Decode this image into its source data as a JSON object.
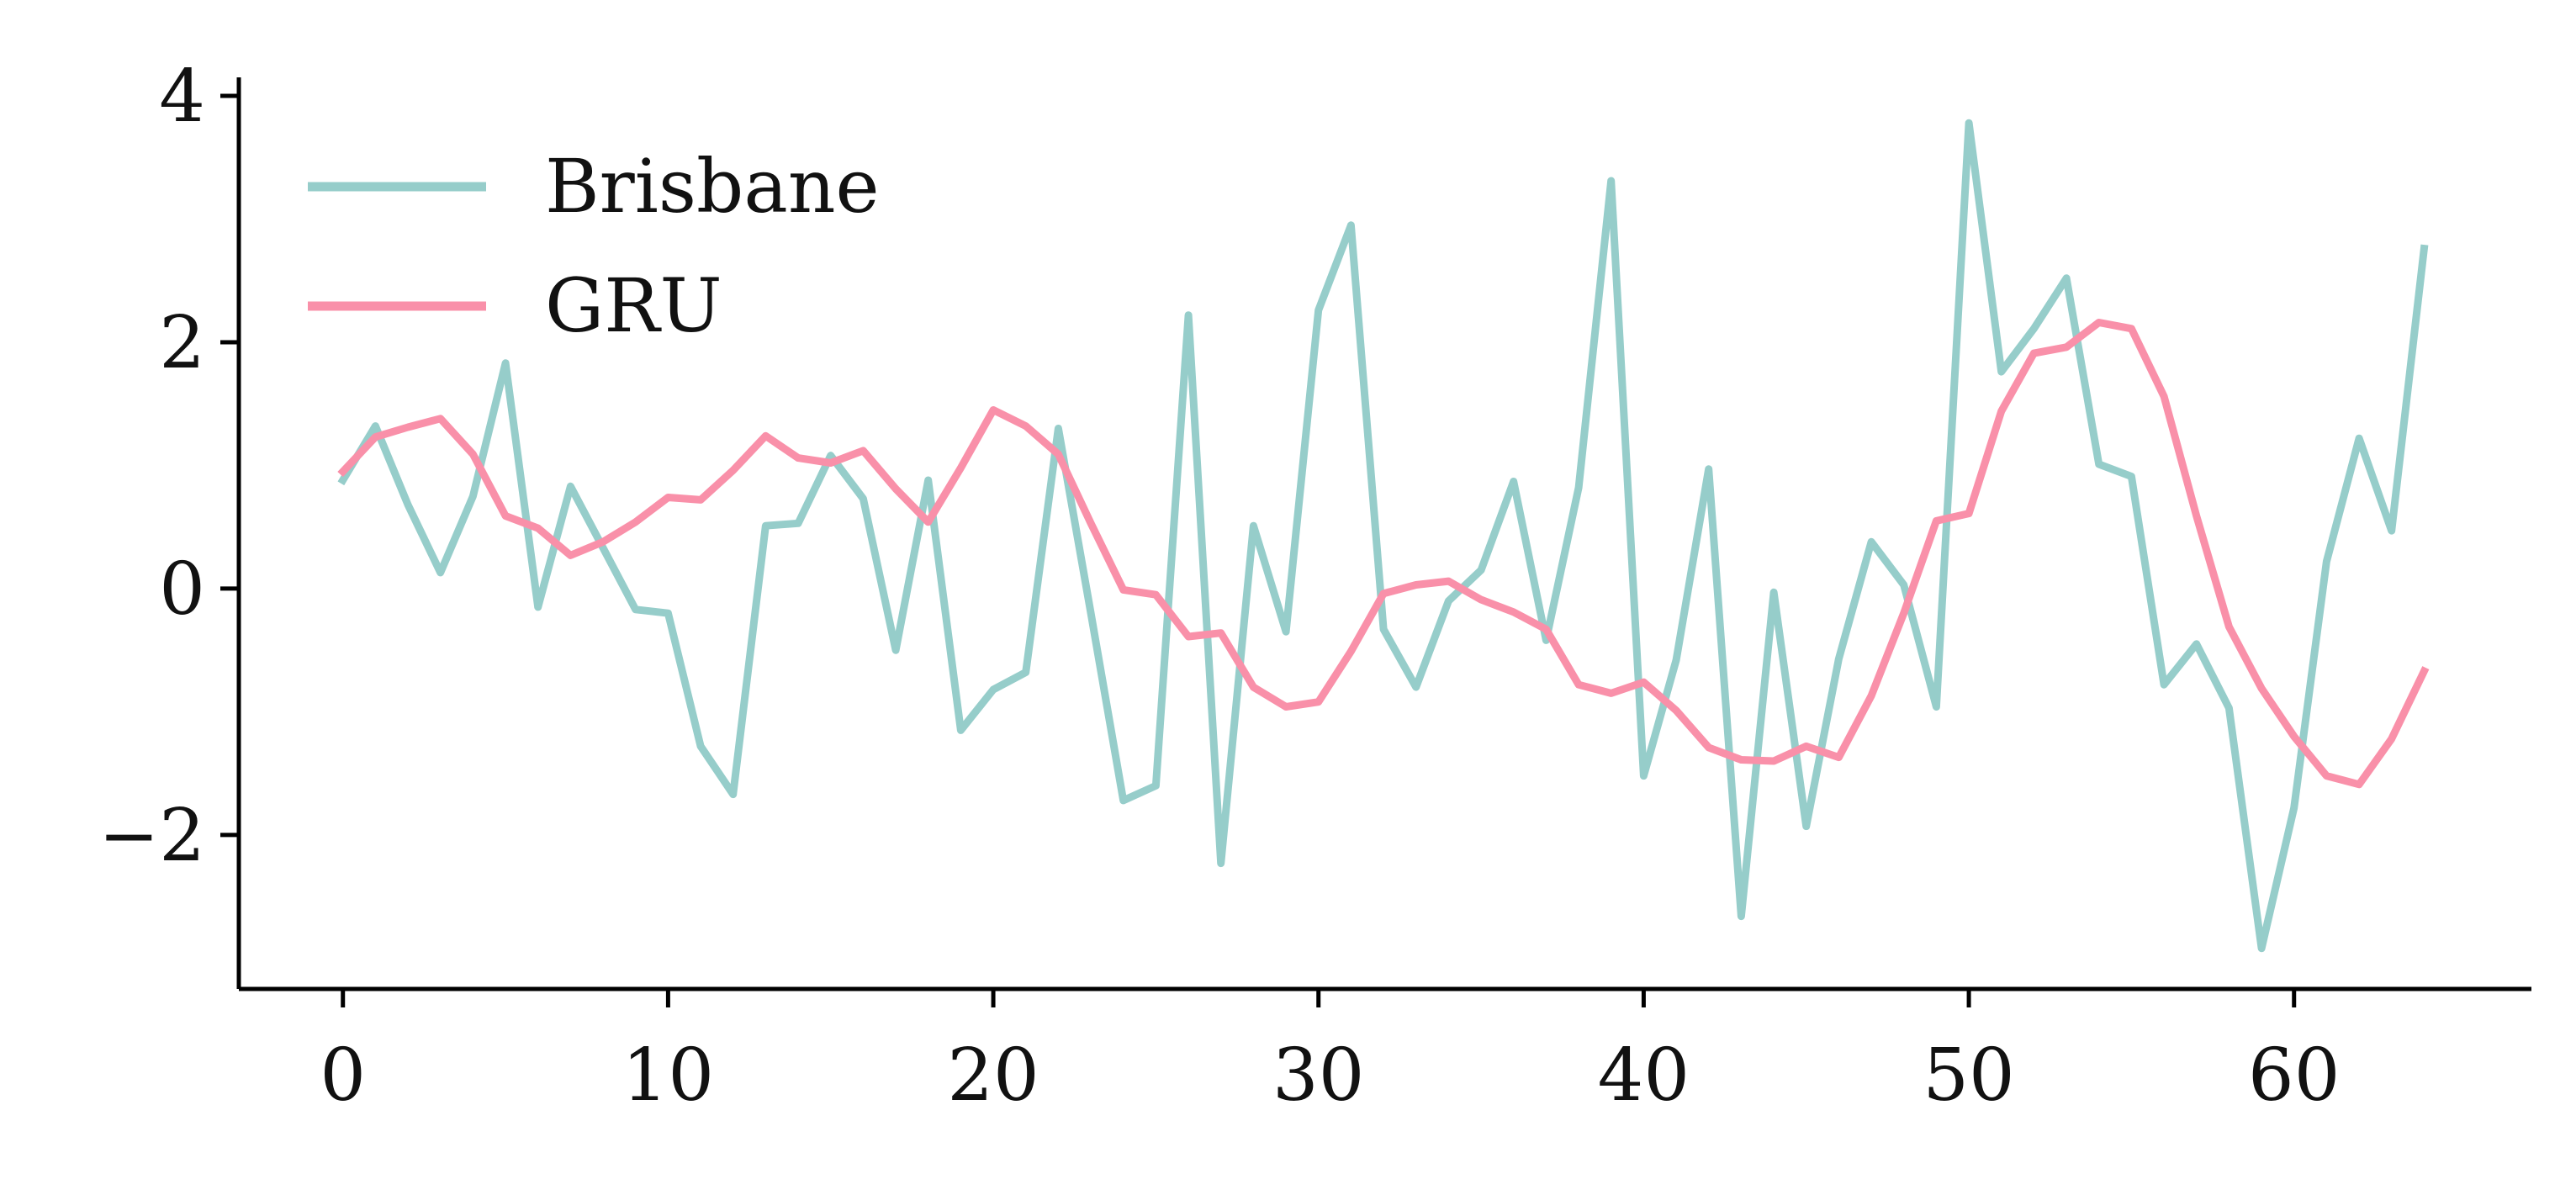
{
  "chart_data": {
    "type": "line",
    "xlim": [
      -3.2,
      67.3
    ],
    "ylim": [
      -3.25,
      4.15
    ],
    "xticks": [
      0,
      10,
      20,
      30,
      40,
      50,
      60
    ],
    "xtick_labels": [
      "0",
      "10",
      "20",
      "30",
      "40",
      "50",
      "60"
    ],
    "yticks": [
      -2,
      0,
      2,
      4
    ],
    "ytick_labels": [
      "−2",
      "0",
      "2",
      "4"
    ],
    "grid": false,
    "legend_position": "top-left",
    "x": [
      0,
      1,
      2,
      3,
      4,
      5,
      6,
      7,
      8,
      9,
      10,
      11,
      12,
      13,
      14,
      15,
      16,
      17,
      18,
      19,
      20,
      21,
      22,
      23,
      24,
      25,
      26,
      27,
      28,
      29,
      30,
      31,
      32,
      33,
      34,
      35,
      36,
      37,
      38,
      39,
      40,
      41,
      42,
      43,
      44,
      45,
      46,
      47,
      48,
      49,
      50,
      51,
      52,
      53,
      54,
      55,
      56,
      57,
      58,
      59,
      60,
      61,
      62,
      63,
      64
    ],
    "series": [
      {
        "name": "Brisbane",
        "color": "#96cdca",
        "values": [
          0.88,
          1.32,
          0.68,
          0.13,
          0.75,
          1.83,
          -0.15,
          0.83,
          0.33,
          -0.17,
          -0.2,
          -1.28,
          -1.67,
          0.51,
          0.53,
          1.08,
          0.73,
          -0.5,
          0.88,
          -1.15,
          -0.82,
          -0.68,
          1.3,
          -0.2,
          -1.72,
          -1.6,
          2.22,
          -2.23,
          0.51,
          -0.35,
          2.26,
          2.95,
          -0.33,
          -0.8,
          -0.1,
          0.15,
          0.87,
          -0.42,
          0.82,
          3.31,
          -1.52,
          -0.58,
          0.97,
          -2.66,
          -0.03,
          -1.93,
          -0.57,
          0.38,
          0.03,
          -0.96,
          3.78,
          1.76,
          2.11,
          2.52,
          1.01,
          0.91,
          -0.78,
          -0.45,
          -0.97,
          -2.92,
          -1.78,
          0.22,
          1.22,
          0.47,
          2.76
        ]
      },
      {
        "name": "GRU",
        "color": "#f990a9",
        "values": [
          0.95,
          1.23,
          1.31,
          1.38,
          1.09,
          0.59,
          0.49,
          0.27,
          0.38,
          0.54,
          0.74,
          0.72,
          0.96,
          1.24,
          1.06,
          1.02,
          1.12,
          0.81,
          0.54,
          0.98,
          1.45,
          1.32,
          1.09,
          0.53,
          -0.01,
          -0.05,
          -0.39,
          -0.36,
          -0.8,
          -0.96,
          -0.92,
          -0.51,
          -0.04,
          0.03,
          0.06,
          -0.09,
          -0.19,
          -0.33,
          -0.78,
          -0.85,
          -0.76,
          -0.99,
          -1.29,
          -1.39,
          -1.4,
          -1.28,
          -1.37,
          -0.87,
          -0.2,
          0.55,
          0.61,
          1.44,
          1.91,
          1.96,
          2.16,
          2.11,
          1.56,
          0.59,
          -0.31,
          -0.81,
          -1.2,
          -1.52,
          -1.59,
          -1.22,
          -0.67
        ]
      }
    ]
  }
}
